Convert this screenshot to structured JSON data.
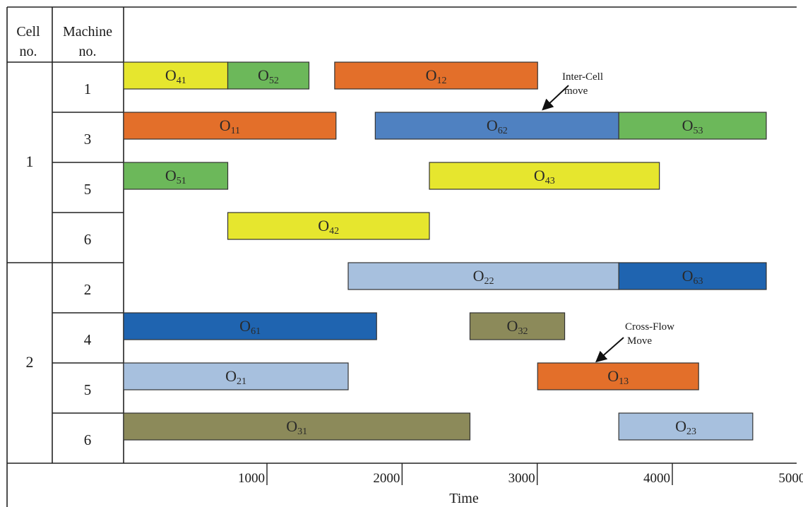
{
  "chart_data": {
    "type": "gantt",
    "header": {
      "cell": [
        "Cell",
        "no."
      ],
      "machine": [
        "Machine",
        "no."
      ]
    },
    "xlabel": "Time",
    "x_ticks": [
      1000,
      2000,
      3000,
      4000,
      5000
    ],
    "xlim": [
      0,
      5000
    ],
    "rows": [
      {
        "cell": "1",
        "machine": "1"
      },
      {
        "cell": "1",
        "machine": "3"
      },
      {
        "cell": "1",
        "machine": "5"
      },
      {
        "cell": "1",
        "machine": "6"
      },
      {
        "cell": "2",
        "machine": "2"
      },
      {
        "cell": "2",
        "machine": "4"
      },
      {
        "cell": "2",
        "machine": "5"
      },
      {
        "cell": "2",
        "machine": "6"
      }
    ],
    "cells": [
      {
        "label": "1",
        "rows": [
          0,
          3
        ]
      },
      {
        "label": "2",
        "rows": [
          4,
          7
        ]
      }
    ],
    "operations": [
      {
        "row": 0,
        "base": "O",
        "sub": "41",
        "start": 0,
        "end": 770,
        "color": "#e6e62e"
      },
      {
        "row": 0,
        "base": "O",
        "sub": "52",
        "start": 770,
        "end": 1370,
        "color": "#6cb85a"
      },
      {
        "row": 0,
        "base": "O",
        "sub": "12",
        "start": 1560,
        "end": 3060,
        "color": "#e36f2a"
      },
      {
        "row": 1,
        "base": "O",
        "sub": "11",
        "start": 0,
        "end": 1570,
        "color": "#e36f2a"
      },
      {
        "row": 1,
        "base": "O",
        "sub": "62",
        "start": 1860,
        "end": 3660,
        "color": "#4f81c1"
      },
      {
        "row": 1,
        "base": "O",
        "sub": "53",
        "start": 3660,
        "end": 4750,
        "color": "#6cb85a"
      },
      {
        "row": 2,
        "base": "O",
        "sub": "51",
        "start": 0,
        "end": 770,
        "color": "#6cb85a"
      },
      {
        "row": 2,
        "base": "O",
        "sub": "43",
        "start": 2260,
        "end": 3960,
        "color": "#e6e62e"
      },
      {
        "row": 3,
        "base": "O",
        "sub": "42",
        "start": 770,
        "end": 2260,
        "color": "#e6e62e"
      },
      {
        "row": 4,
        "base": "O",
        "sub": "22",
        "start": 1660,
        "end": 3660,
        "color": "#a7c0de"
      },
      {
        "row": 4,
        "base": "O",
        "sub": "63",
        "start": 3660,
        "end": 4750,
        "color": "#1f64b0"
      },
      {
        "row": 5,
        "base": "O",
        "sub": "61",
        "start": 0,
        "end": 1870,
        "color": "#1f64b0"
      },
      {
        "row": 5,
        "base": "O",
        "sub": "32",
        "start": 2560,
        "end": 3260,
        "color": "#8c8a5a"
      },
      {
        "row": 6,
        "base": "O",
        "sub": "21",
        "start": 0,
        "end": 1660,
        "color": "#a7c0de"
      },
      {
        "row": 6,
        "base": "O",
        "sub": "13",
        "start": 3060,
        "end": 4250,
        "color": "#e36f2a"
      },
      {
        "row": 7,
        "base": "O",
        "sub": "31",
        "start": 0,
        "end": 2560,
        "color": "#8c8a5a"
      },
      {
        "row": 7,
        "base": "O",
        "sub": "23",
        "start": 3660,
        "end": 4650,
        "color": "#a7c0de"
      }
    ],
    "annotations": [
      {
        "lines": [
          "Inter-Cell",
          "move"
        ],
        "target": "O62"
      },
      {
        "lines": [
          "Cross-Flow",
          "Move"
        ],
        "target": "O13"
      }
    ]
  }
}
